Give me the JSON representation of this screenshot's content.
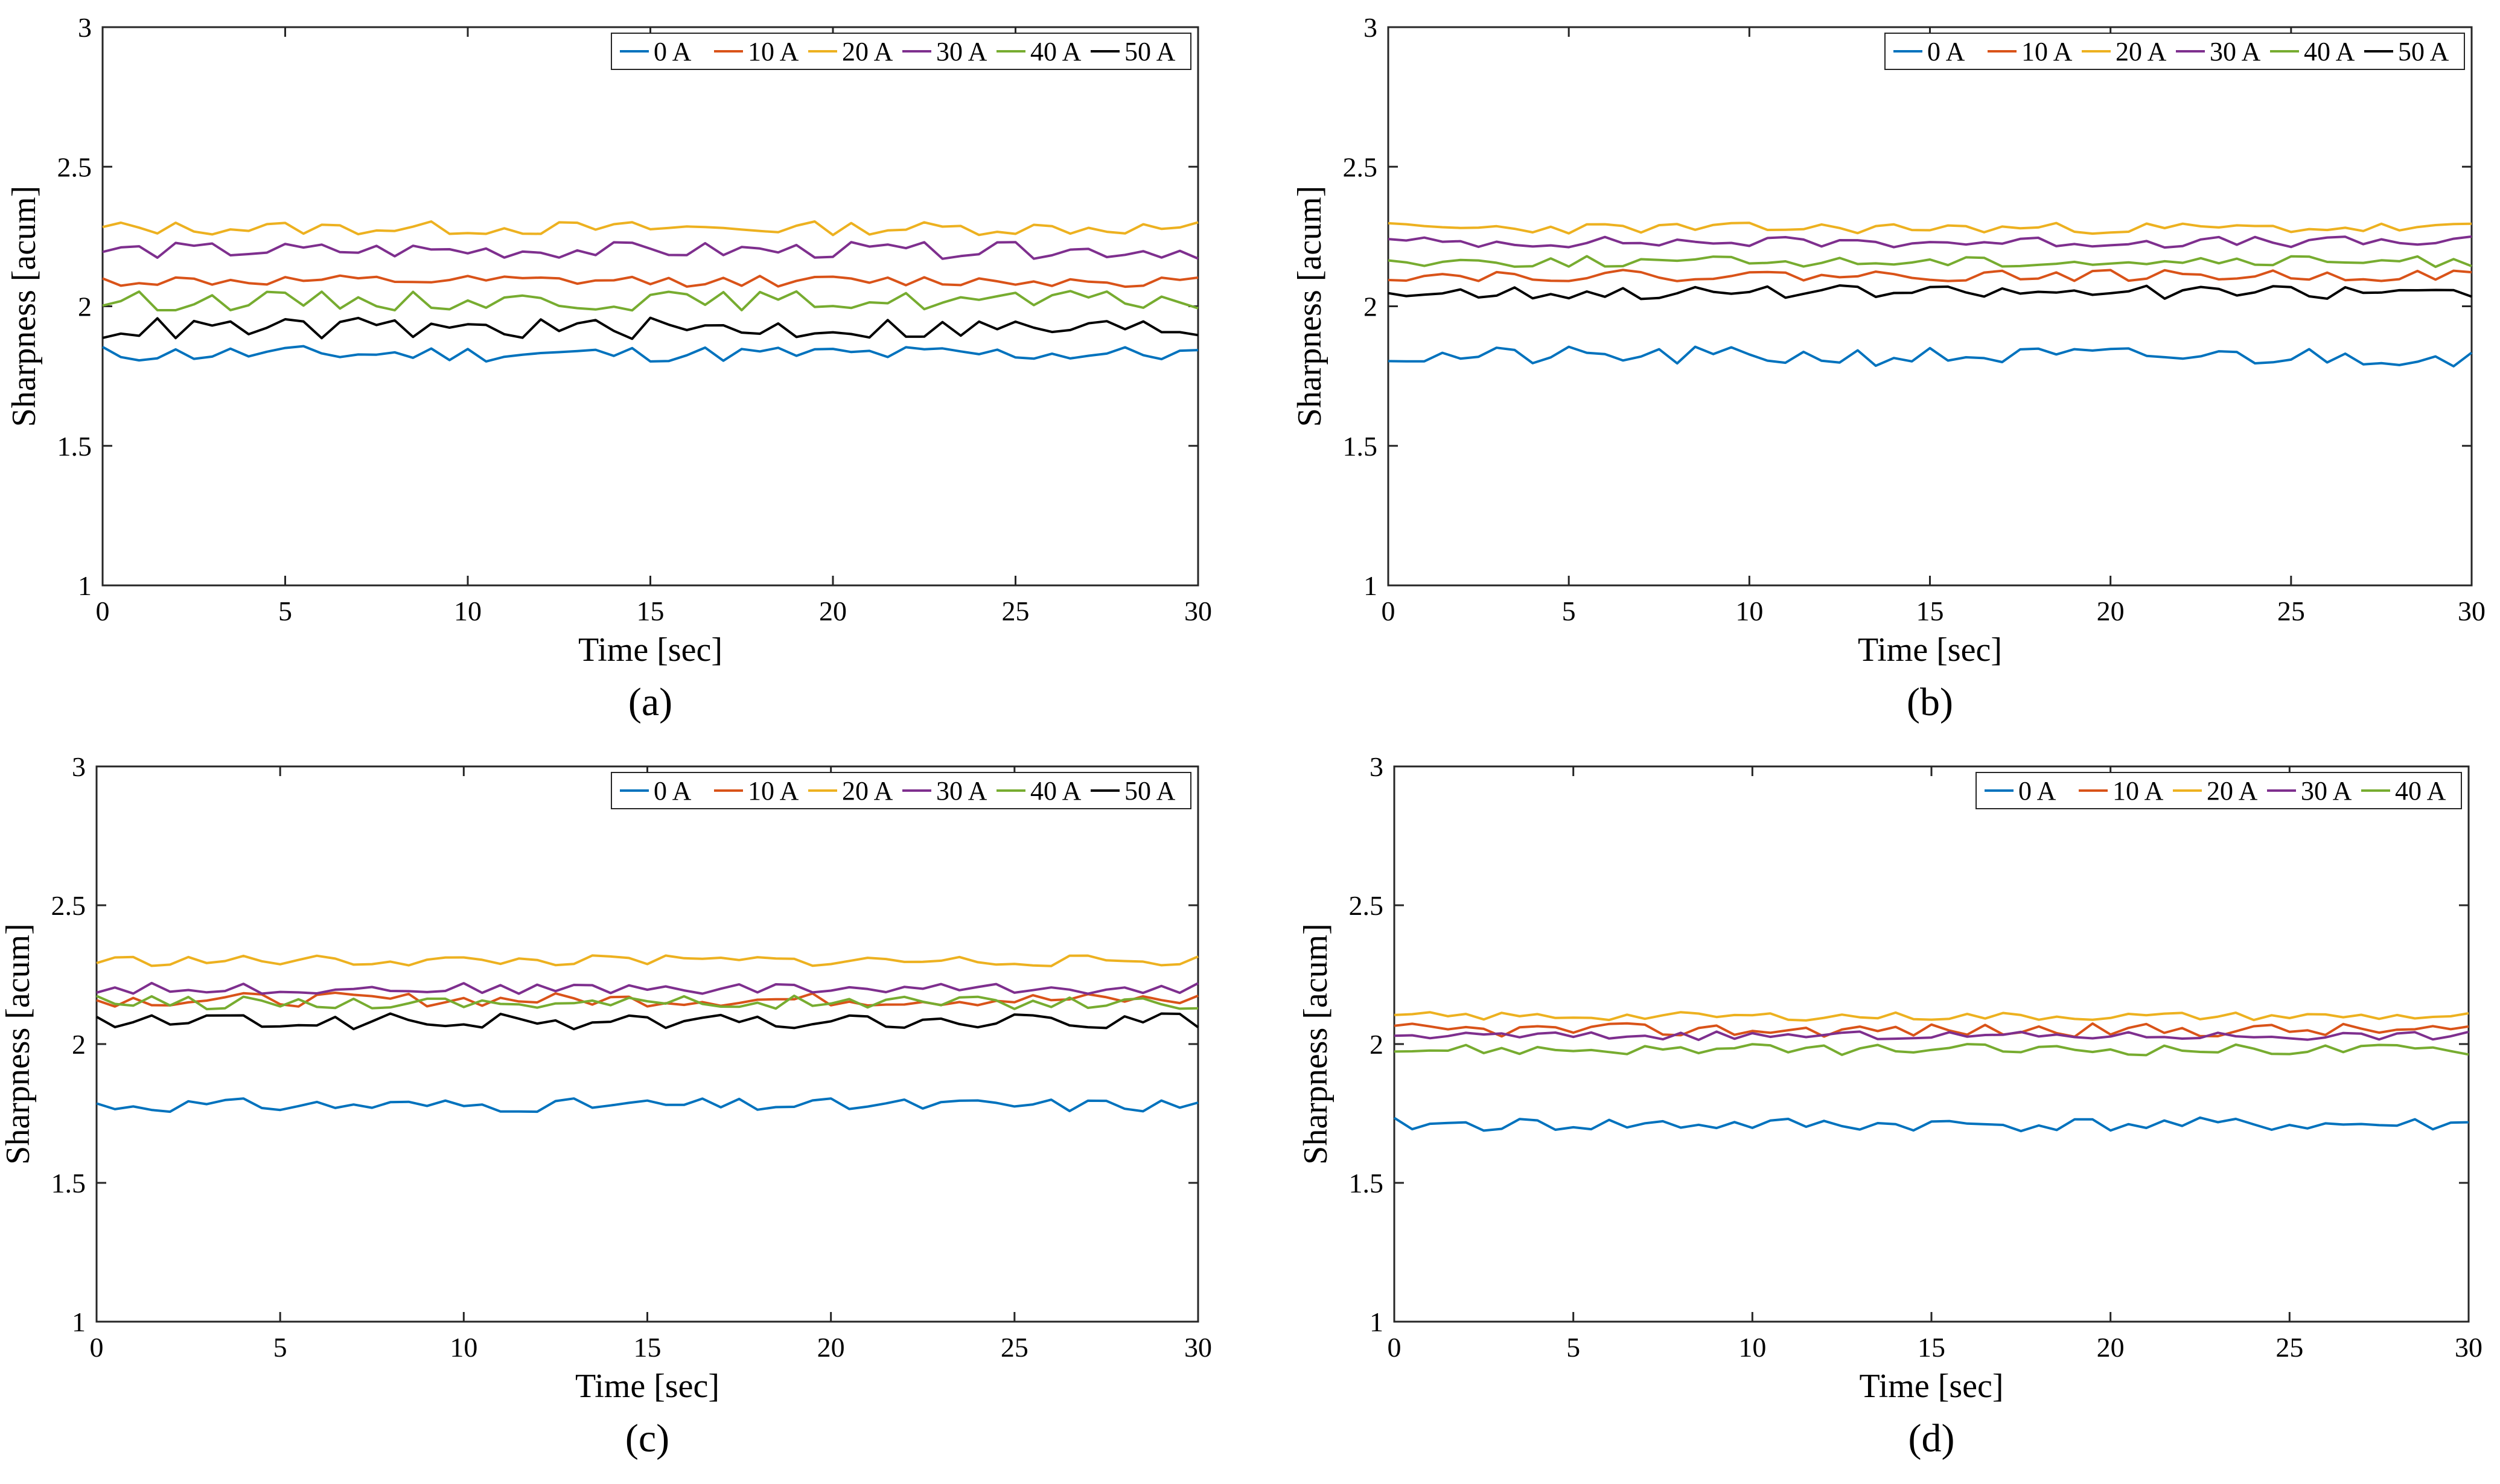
{
  "figure": {
    "panels": [
      "a",
      "b",
      "c",
      "d"
    ]
  },
  "chart_data": [
    {
      "panel": "a",
      "panel_label": "(a)",
      "type": "line",
      "xlabel": "Time [sec]",
      "ylabel": "Sharpness [acum]",
      "xlim": [
        0,
        30
      ],
      "ylim": [
        1,
        3
      ],
      "xticks": [
        0,
        5,
        10,
        15,
        20,
        25,
        30
      ],
      "yticks": [
        1,
        1.5,
        2,
        2.5,
        3
      ],
      "legend_location": "top-right",
      "series": [
        {
          "name": "0 A",
          "color": "#0072BD",
          "base": 1.83,
          "amp": 0.03,
          "seed": 11
        },
        {
          "name": "10 A",
          "color": "#D95319",
          "base": 2.09,
          "amp": 0.02,
          "seed": 12
        },
        {
          "name": "20 A",
          "color": "#EDB120",
          "base": 2.28,
          "amp": 0.025,
          "seed": 13
        },
        {
          "name": "30 A",
          "color": "#7E2F8E",
          "base": 2.2,
          "amp": 0.03,
          "seed": 14
        },
        {
          "name": "40 A",
          "color": "#77AC30",
          "base": 2.02,
          "amp": 0.035,
          "seed": 15
        },
        {
          "name": "50 A",
          "color": "#000000",
          "base": 1.92,
          "amp": 0.04,
          "seed": 16
        }
      ]
    },
    {
      "panel": "b",
      "panel_label": "(b)",
      "type": "line",
      "xlabel": "Time [sec]",
      "ylabel": "Sharpness [acum]",
      "xlim": [
        0,
        30
      ],
      "ylim": [
        1,
        3
      ],
      "xticks": [
        0,
        5,
        10,
        15,
        20,
        25,
        30
      ],
      "yticks": [
        1,
        1.5,
        2,
        2.5,
        3
      ],
      "legend_location": "top-right",
      "series": [
        {
          "name": "0 A",
          "color": "#0072BD",
          "base": 1.82,
          "amp": 0.035,
          "seed": 21
        },
        {
          "name": "10 A",
          "color": "#D95319",
          "base": 2.11,
          "amp": 0.02,
          "seed": 22
        },
        {
          "name": "20 A",
          "color": "#EDB120",
          "base": 2.28,
          "amp": 0.02,
          "seed": 23
        },
        {
          "name": "30 A",
          "color": "#7E2F8E",
          "base": 2.23,
          "amp": 0.02,
          "seed": 24
        },
        {
          "name": "40 A",
          "color": "#77AC30",
          "base": 2.16,
          "amp": 0.02,
          "seed": 25
        },
        {
          "name": "50 A",
          "color": "#000000",
          "base": 2.05,
          "amp": 0.025,
          "seed": 26
        }
      ]
    },
    {
      "panel": "c",
      "panel_label": "(c)",
      "type": "line",
      "xlabel": "Time [sec]",
      "ylabel": "Sharpness [acum]",
      "xlim": [
        0,
        30
      ],
      "ylim": [
        1,
        3
      ],
      "xticks": [
        0,
        5,
        10,
        15,
        20,
        25,
        30
      ],
      "yticks": [
        1,
        1.5,
        2,
        2.5,
        3
      ],
      "legend_location": "top-right",
      "series": [
        {
          "name": "0 A",
          "color": "#0072BD",
          "base": 1.78,
          "amp": 0.025,
          "seed": 31
        },
        {
          "name": "10 A",
          "color": "#D95319",
          "base": 2.16,
          "amp": 0.025,
          "seed": 32
        },
        {
          "name": "20 A",
          "color": "#EDB120",
          "base": 2.3,
          "amp": 0.02,
          "seed": 33
        },
        {
          "name": "30 A",
          "color": "#7E2F8E",
          "base": 2.2,
          "amp": 0.02,
          "seed": 34
        },
        {
          "name": "40 A",
          "color": "#77AC30",
          "base": 2.15,
          "amp": 0.025,
          "seed": 35
        },
        {
          "name": "50 A",
          "color": "#000000",
          "base": 2.08,
          "amp": 0.03,
          "seed": 36
        }
      ]
    },
    {
      "panel": "d",
      "panel_label": "(d)",
      "type": "line",
      "xlabel": "Time [sec]",
      "ylabel": "Sharpness [acum]",
      "xlim": [
        0,
        30
      ],
      "ylim": [
        1,
        3
      ],
      "xticks": [
        0,
        5,
        10,
        15,
        20,
        25,
        30
      ],
      "yticks": [
        1,
        1.5,
        2,
        2.5,
        3
      ],
      "legend_location": "top-right",
      "series": [
        {
          "name": "0 A",
          "color": "#0072BD",
          "base": 1.71,
          "amp": 0.025,
          "seed": 41
        },
        {
          "name": "10 A",
          "color": "#D95319",
          "base": 2.05,
          "amp": 0.025,
          "seed": 42
        },
        {
          "name": "20 A",
          "color": "#EDB120",
          "base": 2.1,
          "amp": 0.015,
          "seed": 43
        },
        {
          "name": "30 A",
          "color": "#7E2F8E",
          "base": 2.03,
          "amp": 0.015,
          "seed": 44
        },
        {
          "name": "40 A",
          "color": "#77AC30",
          "base": 1.98,
          "amp": 0.02,
          "seed": 45
        }
      ]
    }
  ]
}
